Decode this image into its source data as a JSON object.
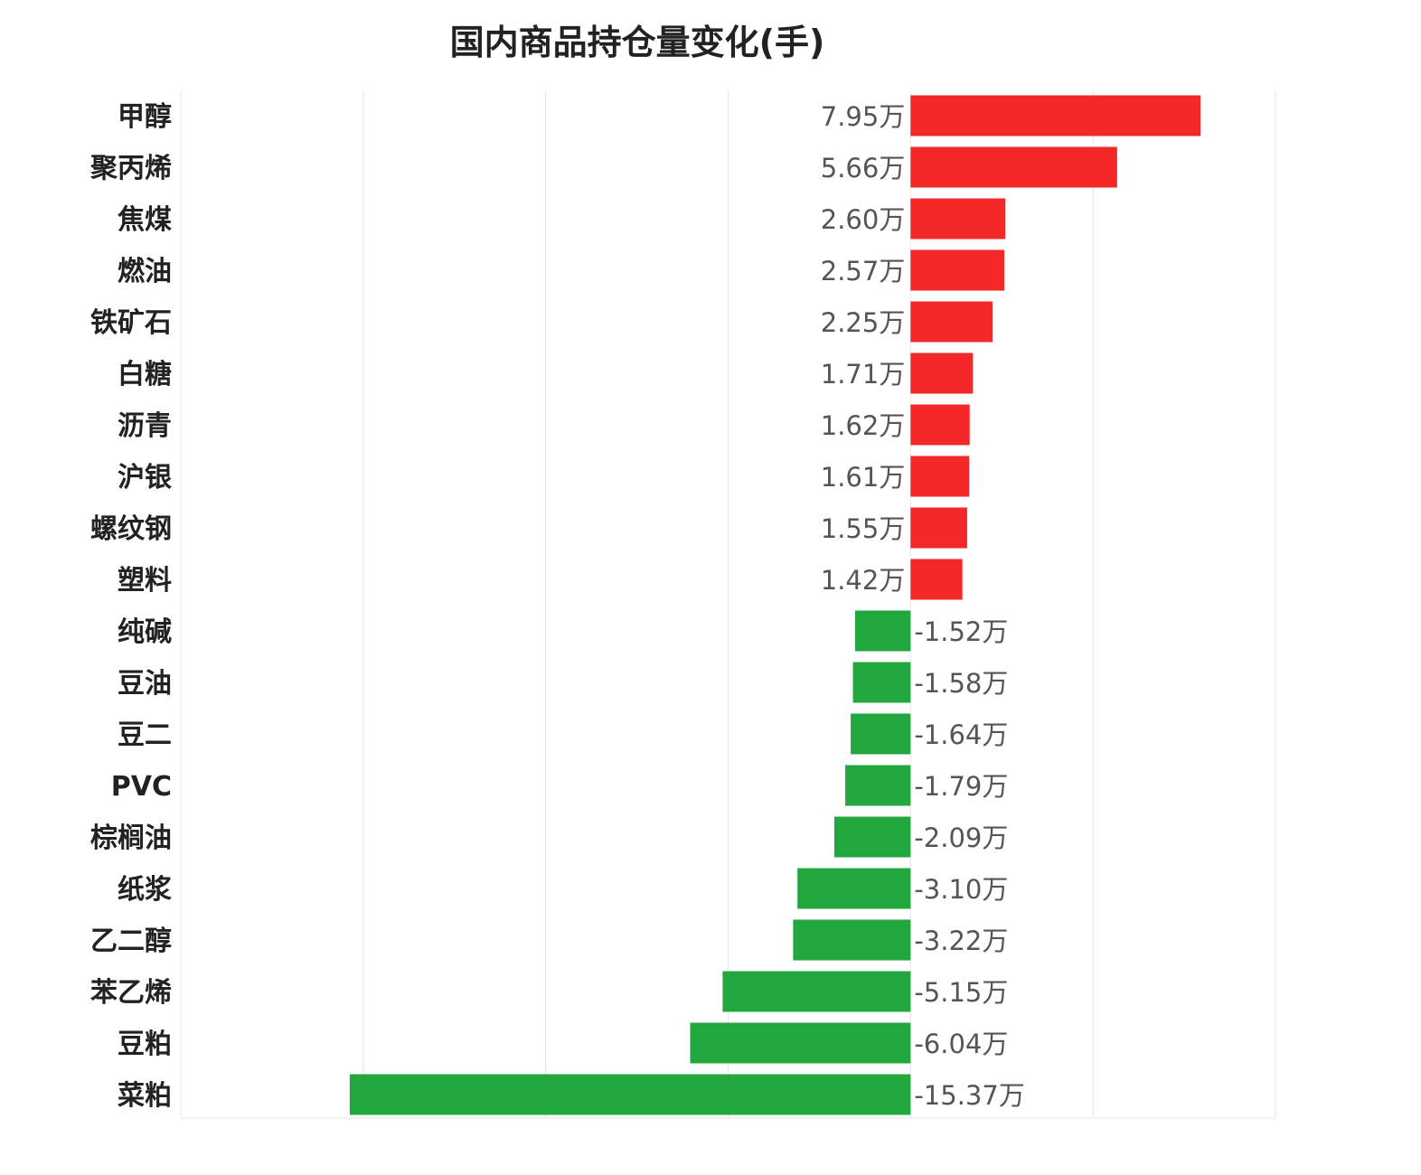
{
  "chart_data": {
    "type": "bar",
    "orientation": "horizontal",
    "title": "国内商品持仓量变化(手)",
    "xlim": [
      -20,
      10
    ],
    "grid": true,
    "categories": [
      "甲醇",
      "聚丙烯",
      "焦煤",
      "燃油",
      "铁矿石",
      "白糖",
      "沥青",
      "沪银",
      "螺纹钢",
      "塑料",
      "纯碱",
      "豆油",
      "豆二",
      "PVC",
      "棕榈油",
      "纸浆",
      "乙二醇",
      "苯乙烯",
      "豆粕",
      "菜粕"
    ],
    "values": [
      7.95,
      5.66,
      2.6,
      2.57,
      2.25,
      1.71,
      1.62,
      1.61,
      1.55,
      1.42,
      -1.52,
      -1.58,
      -1.64,
      -1.79,
      -2.09,
      -3.1,
      -3.22,
      -5.15,
      -6.04,
      -15.37
    ],
    "labels": [
      "7.95万",
      "5.66万",
      "2.60万",
      "2.57万",
      "2.25万",
      "1.71万",
      "1.62万",
      "1.61万",
      "1.55万",
      "1.42万",
      "-1.52万",
      "-1.58万",
      "-1.64万",
      "-1.79万",
      "-2.09万",
      "-3.10万",
      "-3.22万",
      "-5.15万",
      "-6.04万",
      "-15.37万"
    ],
    "colors": {
      "positive": "#f52828",
      "negative": "#21a73d"
    }
  }
}
